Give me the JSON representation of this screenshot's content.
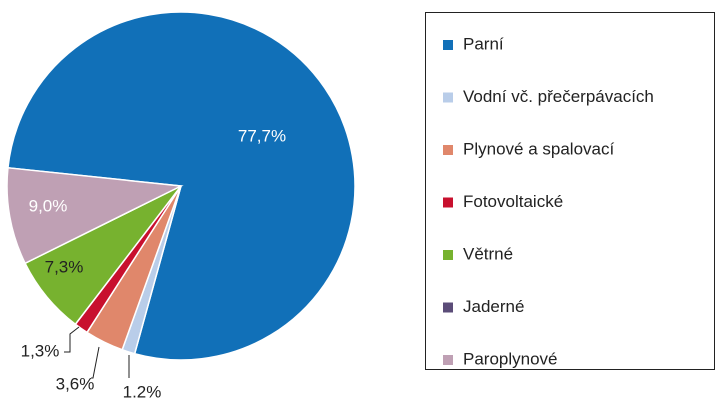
{
  "chart_data": {
    "type": "pie",
    "categories": [
      "Parní",
      "Vodní vč. přečerpávacích",
      "Plynové a spalovací",
      "Fotovoltaické",
      "Větrné",
      "Jaderné",
      "Paroplynové"
    ],
    "values": [
      77.7,
      1.2,
      3.6,
      1.3,
      7.3,
      0,
      9.0
    ],
    "value_labels": [
      "77,7%",
      "1.2%",
      "3,6%",
      "1,3%",
      "7,3%",
      null,
      "9,0%"
    ],
    "colors": [
      "#1170b8",
      "#b9cde9",
      "#e0876b",
      "#c8102e",
      "#77b22f",
      "#5b4c78",
      "#bfa0b4"
    ],
    "legend": "right"
  }
}
